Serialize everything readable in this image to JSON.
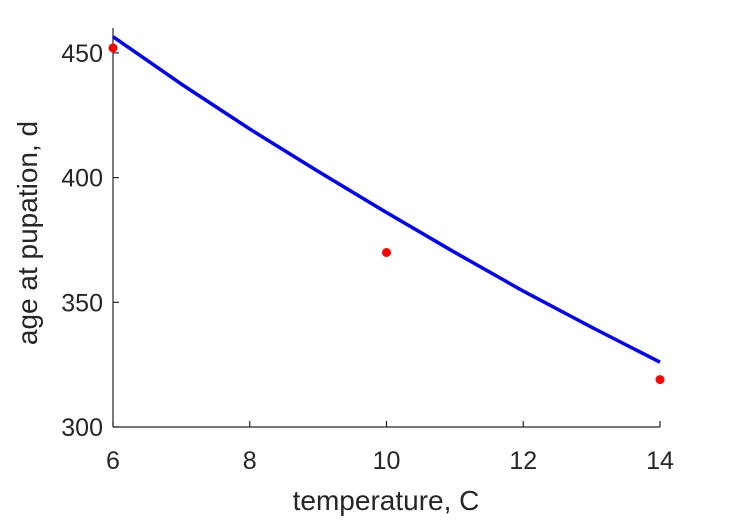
{
  "chart_data": {
    "type": "line",
    "title": "",
    "xlabel": "temperature, C",
    "ylabel": "age at pupation, d",
    "xlim": [
      6,
      14
    ],
    "ylim": [
      300,
      460
    ],
    "xticks": [
      6,
      8,
      10,
      12,
      14
    ],
    "yticks": [
      300,
      350,
      400,
      450
    ],
    "grid": false,
    "legend": "none",
    "series": [
      {
        "kind": "line",
        "color": "#0000ff",
        "x": [
          6,
          7,
          8,
          9,
          10,
          11,
          12,
          13,
          14
        ],
        "y": [
          456.5,
          437.5,
          419.5,
          402.5,
          386,
          370,
          354.5,
          340,
          326
        ]
      },
      {
        "kind": "scatter",
        "color": "#ff0000",
        "x": [
          6,
          10,
          14
        ],
        "y": [
          452,
          370,
          319
        ]
      }
    ],
    "axis_color": "#262626"
  }
}
